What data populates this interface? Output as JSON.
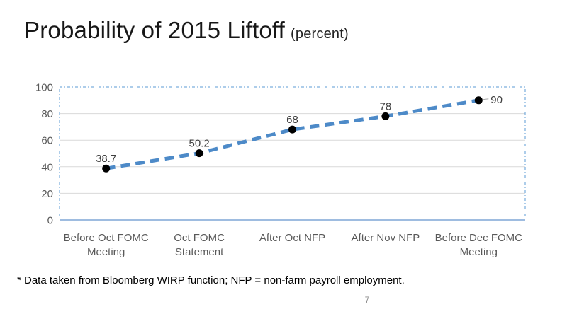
{
  "slide": {
    "title": "Probability of 2015 Liftoff",
    "title_suffix": "(percent)",
    "footnote": "* Data taken from Bloomberg WIRP function; NFP = non-farm payroll employment.",
    "page_number": "7"
  },
  "chart_data": {
    "type": "line",
    "title": "Probability of 2015 Liftoff (percent)",
    "categories": [
      "Before Oct FOMC Meeting",
      "Oct FOMC Statement",
      "After Oct NFP",
      "After Nov NFP",
      "Before Dec FOMC Meeting"
    ],
    "values": [
      38.7,
      50.2,
      68,
      78,
      90
    ],
    "data_labels": [
      "38.7",
      "50.2",
      "68",
      "78",
      "90"
    ],
    "label_positions": [
      "above",
      "above",
      "above",
      "above",
      "right"
    ],
    "y_ticks": [
      0,
      20,
      40,
      60,
      80,
      100
    ],
    "ylim": [
      0,
      100
    ],
    "xlabel": "",
    "ylabel": "",
    "grid": true,
    "legend": "none",
    "line_style": "dashed",
    "marker": "filled-circle",
    "colors": {
      "line": "#4D8AC8",
      "marker": "#000000",
      "gridline": "#D9D9D9",
      "plot_border": "#5B9BD5",
      "axis_line": "#7EA6D5",
      "tick_label": "#595959",
      "data_label": "#3F3F3F",
      "leader_line": "#A6A6A6"
    }
  }
}
